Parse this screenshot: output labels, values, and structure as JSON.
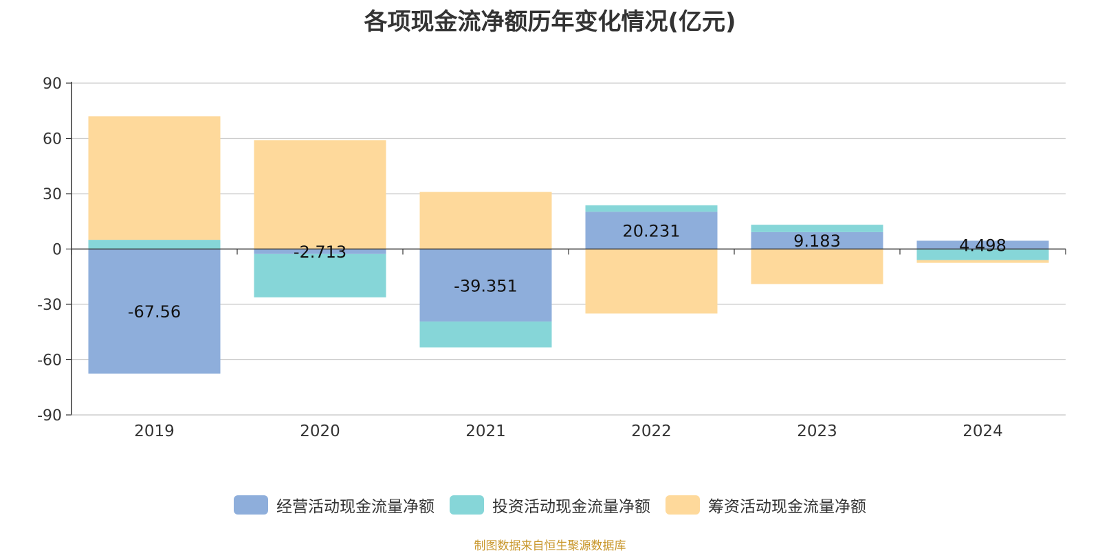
{
  "chart_data": {
    "type": "bar",
    "stacked": true,
    "title": "各项现金流净额历年变化情况(亿元)",
    "categories": [
      "2019",
      "2020",
      "2021",
      "2022",
      "2023",
      "2024"
    ],
    "ylim": [
      -90,
      90
    ],
    "yticks": [
      90,
      60,
      30,
      0,
      -30,
      -60,
      -90
    ],
    "grid": true,
    "legend_position": "bottom",
    "series": [
      {
        "name": "经营活动现金流量净额",
        "color": "#8eaedb",
        "values": [
          -67.56,
          -2.713,
          -39.351,
          20.231,
          9.183,
          4.498
        ]
      },
      {
        "name": "投资活动现金流量净额",
        "color": "#86d6d8",
        "values": [
          5.0,
          -23.5,
          -14.0,
          3.5,
          4.0,
          -6.0
        ]
      },
      {
        "name": "筹资活动现金流量净额",
        "color": "#fed99b",
        "values": [
          67.0,
          59.0,
          31.0,
          -35.0,
          -19.0,
          -1.5
        ]
      }
    ],
    "data_labels": [
      "-67.56",
      "-2.713",
      "-39.351",
      "20.231",
      "9.183",
      "4.498"
    ]
  },
  "footer": {
    "source": "制图数据来自恒生聚源数据库"
  }
}
